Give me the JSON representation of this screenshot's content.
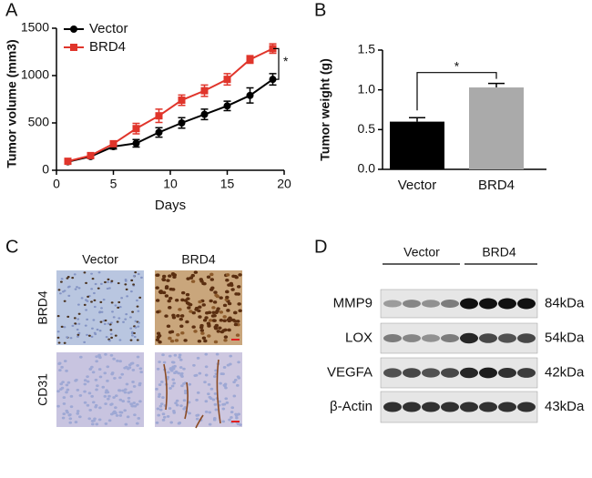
{
  "panel_labels": [
    "A",
    "B",
    "C",
    "D"
  ],
  "chart_data": [
    {
      "type": "line",
      "ylabel": "Tumor volume (mm3)",
      "xlabel": "Days",
      "x": [
        1,
        3,
        5,
        7,
        9,
        11,
        13,
        15,
        17,
        19
      ],
      "series": [
        {
          "name": "Vector",
          "color": "#000000",
          "values": [
            90,
            145,
            250,
            285,
            400,
            500,
            590,
            680,
            790,
            960
          ],
          "errors": [
            20,
            20,
            25,
            40,
            50,
            55,
            55,
            50,
            80,
            60
          ]
        },
        {
          "name": "BRD4",
          "color": "#e0352b",
          "values": [
            95,
            155,
            280,
            440,
            575,
            740,
            840,
            960,
            1170,
            1285
          ],
          "errors": [
            15,
            20,
            25,
            55,
            70,
            55,
            60,
            60,
            40,
            50
          ]
        }
      ],
      "xlim": [
        0,
        20
      ],
      "xticks": [
        0,
        5,
        10,
        15,
        20
      ],
      "ylim": [
        0,
        1500
      ],
      "yticks": [
        0,
        500,
        1000,
        1500
      ],
      "legend": "upper left",
      "annotation": "*"
    },
    {
      "type": "bar",
      "ylabel": "Tumor weight (g)",
      "categories": [
        "Vector",
        "BRD4"
      ],
      "values": [
        0.6,
        1.03
      ],
      "errors": [
        0.05,
        0.05
      ],
      "colors": [
        "#000000",
        "#aaaaaa"
      ],
      "ylim": [
        0,
        1.5
      ],
      "yticks": [
        {
          "value": 0,
          "label": "0.0"
        },
        0.5,
        {
          "value": 1,
          "label": "1.0"
        },
        1.5
      ],
      "annotation": "*"
    }
  ],
  "ihc": {
    "columns": [
      "Vector",
      "BRD4"
    ],
    "rows": [
      "BRD4",
      "CD31"
    ]
  },
  "western": {
    "groups": [
      "Vector",
      "BRD4"
    ],
    "rows": [
      {
        "protein": "MMP9",
        "size": "84kDa"
      },
      {
        "protein": "LOX",
        "size": "54kDa"
      },
      {
        "protein": "VEGFA",
        "size": "42kDa"
      },
      {
        "protein": "β-Actin",
        "size": "43kDa"
      }
    ]
  }
}
